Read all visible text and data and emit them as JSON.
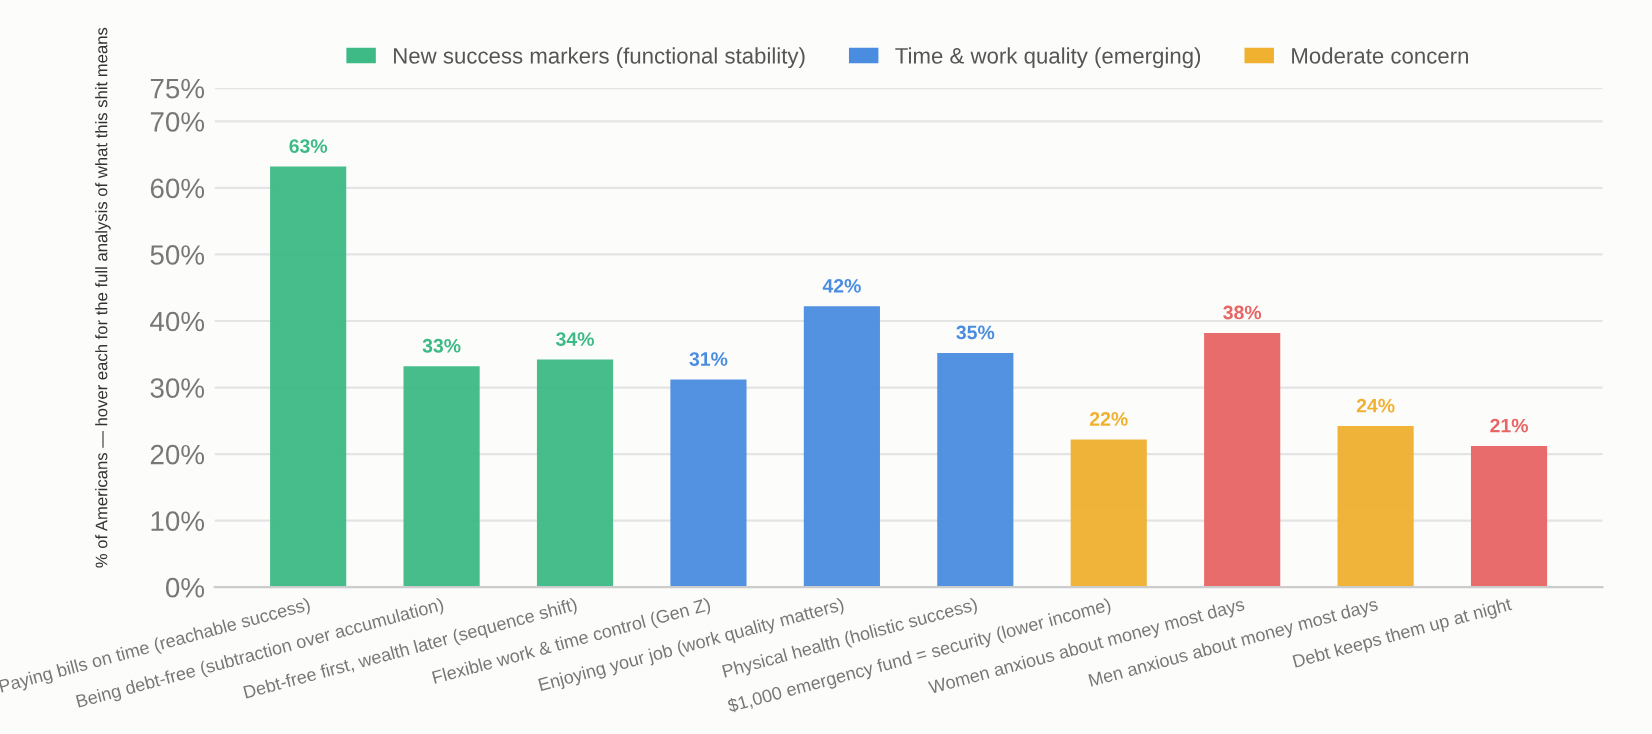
{
  "chart_data": {
    "type": "bar",
    "ylabel": "% of Americans — hover each for the full analysis of what this shit means",
    "categories": [
      "Paying bills on time (reachable success)",
      "Being debt-free (subtraction over accumulation)",
      "Debt-free first, wealth later (sequence shift)",
      "Flexible work & time control (Gen Z)",
      "Enjoying your job (work quality matters)",
      "Physical health (holistic success)",
      "$1,000 emergency fund = security (lower income)",
      "Women anxious about money most days",
      "Men anxious about money most days",
      "Debt keeps them up at night"
    ],
    "series": [
      {
        "name": "New success markers (functional stability)",
        "color": "#3dba85",
        "values": [
          63,
          33,
          34,
          null,
          null,
          null,
          null,
          null,
          null,
          null
        ],
        "value_labels": [
          "63%",
          "33%",
          "34%",
          null,
          null,
          null,
          null,
          null,
          null,
          null
        ]
      },
      {
        "name": "Time & work quality (emerging)",
        "color": "#4a8de0",
        "values": [
          null,
          null,
          null,
          31,
          42,
          35,
          null,
          null,
          null,
          null
        ],
        "value_labels": [
          null,
          null,
          null,
          "31%",
          "42%",
          "35%",
          null,
          null,
          null,
          null
        ]
      },
      {
        "name": "Moderate concern",
        "color": "#f0b030",
        "values": [
          null,
          null,
          null,
          null,
          null,
          null,
          22,
          null,
          24,
          null
        ],
        "value_labels": [
          null,
          null,
          null,
          null,
          null,
          null,
          "22%",
          null,
          "24%",
          null
        ]
      },
      {
        "color": "#e86565",
        "values": [
          null,
          null,
          null,
          null,
          null,
          null,
          null,
          38,
          null,
          21
        ],
        "value_labels": [
          null,
          null,
          null,
          null,
          null,
          null,
          null,
          "38%",
          null,
          "21%"
        ]
      }
    ],
    "ylim": [
      0,
      75
    ],
    "yticks": [
      {
        "value": 0,
        "label": "0%"
      },
      {
        "value": 10,
        "label": "10%"
      },
      {
        "value": 20,
        "label": "20%"
      },
      {
        "value": 30,
        "label": "30%"
      },
      {
        "value": 40,
        "label": "40%"
      },
      {
        "value": 50,
        "label": "50%"
      },
      {
        "value": 60,
        "label": "60%"
      },
      {
        "value": 70,
        "label": "70%"
      },
      {
        "value": 75,
        "label": "75%"
      }
    ],
    "grid": "y",
    "legend": "top"
  }
}
